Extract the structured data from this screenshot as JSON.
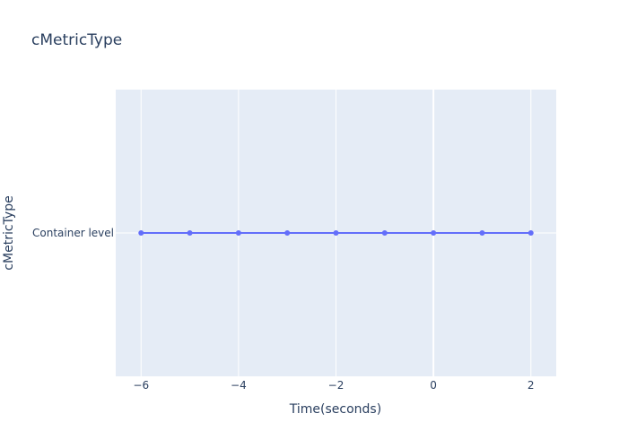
{
  "chart_data": {
    "type": "line",
    "title": "cMetricType",
    "xlabel": "Time(seconds)",
    "ylabel": "cMetricType",
    "x": [
      -6,
      -5,
      -4,
      -3,
      -2,
      -1,
      0,
      1,
      2
    ],
    "y": [
      "Container level",
      "Container level",
      "Container level",
      "Container level",
      "Container level",
      "Container level",
      "Container level",
      "Container level",
      "Container level"
    ],
    "y_categories": [
      "Container level"
    ],
    "xlim": [
      -6.52,
      2.52
    ],
    "x_ticks": [
      -6,
      -4,
      -2,
      0,
      2
    ],
    "x_tick_labels": [
      "−6",
      "−4",
      "−2",
      "0",
      "2"
    ],
    "grid": true,
    "legend": false,
    "colors": {
      "series": "#636efa",
      "plot_bg": "#e5ecf6",
      "grid": "#ffffff",
      "text": "#2a3f5f"
    }
  }
}
